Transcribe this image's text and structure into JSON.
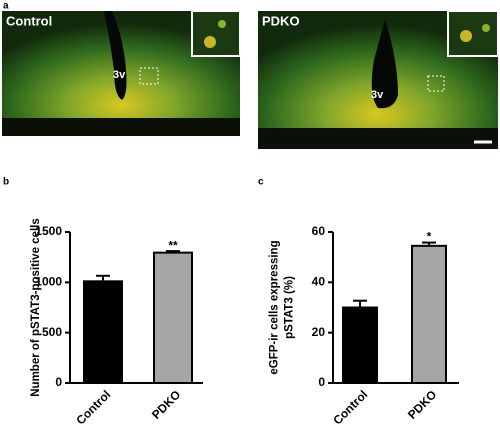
{
  "panel_labels": [
    "a",
    "b",
    "c"
  ],
  "images": [
    {
      "label": "Control",
      "landmark": "3v"
    },
    {
      "label": "PDKO",
      "landmark": "3v"
    }
  ],
  "chart_data": [
    {
      "type": "bar",
      "y_label_lines": [
        "Number of pSTAT3-positive cells"
      ],
      "categories": [
        "Control",
        "PDKO"
      ],
      "values": [
        1010,
        1295
      ],
      "errors": [
        55,
        15
      ],
      "significance": [
        null,
        "**"
      ],
      "colors": [
        "#000000",
        "#a6a6a6"
      ],
      "ylim": [
        0,
        1500
      ],
      "yticks": [
        0,
        500,
        1000,
        1500
      ]
    },
    {
      "type": "bar",
      "y_label_lines": [
        "eGFP-ir cells expressing",
        "pSTAT3  (%)"
      ],
      "categories": [
        "Control",
        "PDKO"
      ],
      "values": [
        30,
        54.5
      ],
      "errors": [
        2.7,
        1.3
      ],
      "significance": [
        null,
        "*"
      ],
      "colors": [
        "#000000",
        "#a6a6a6"
      ],
      "ylim": [
        0,
        60
      ],
      "yticks": [
        0,
        20,
        40,
        60
      ]
    }
  ]
}
